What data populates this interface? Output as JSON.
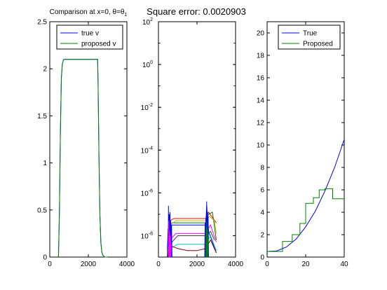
{
  "figure": {
    "suptitle": "Square error: 0.0020903"
  },
  "chart_data": [
    {
      "type": "line",
      "title_prefix": "Comparison at x=0, θ=θ",
      "title_sub": "1",
      "xlim": [
        0,
        4000
      ],
      "ylim": [
        0,
        2.5
      ],
      "xticks": [
        "0",
        "2000",
        "4000"
      ],
      "xtick_values": [
        0,
        2000,
        4000
      ],
      "yticks": [
        "0",
        "0.5",
        "1",
        "1.5",
        "2",
        "2.5"
      ],
      "ytick_values": [
        0,
        0.5,
        1,
        1.5,
        2,
        2.5
      ],
      "legend": "top-right",
      "series": [
        {
          "name": "true v",
          "color": "#0000ff",
          "x": [
            450,
            500,
            550,
            600,
            650,
            700,
            730,
            2480,
            2500,
            2550,
            2600,
            2650,
            2700,
            2750,
            2800,
            2850,
            2900,
            3000
          ],
          "y": [
            0,
            0.5,
            1.3,
            1.9,
            2.05,
            2.09,
            2.1,
            2.1,
            1.9,
            1.1,
            0.45,
            0.15,
            0.05,
            0.02,
            0.01,
            0,
            0,
            0
          ]
        },
        {
          "name": "proposed v",
          "color": "#008000",
          "x": [
            450,
            500,
            550,
            600,
            650,
            700,
            730,
            2480,
            2500,
            2550,
            2600,
            2650,
            2700,
            2750,
            2800,
            2850,
            2900,
            3000
          ],
          "y": [
            0,
            0.5,
            1.3,
            1.9,
            2.05,
            2.09,
            2.1,
            2.1,
            1.9,
            1.1,
            0.45,
            0.15,
            0.05,
            0.02,
            0.01,
            0,
            0,
            0
          ]
        }
      ]
    },
    {
      "type": "line",
      "scale": "log",
      "xlim": [
        0,
        4000
      ],
      "ylim_exp": [
        -9,
        2
      ],
      "xticks": [
        "0",
        "2000",
        "4000"
      ],
      "xtick_values": [
        0,
        2000,
        4000
      ],
      "yticks": [
        {
          "base": "10",
          "exp": "2",
          "value": 2
        },
        {
          "base": "10",
          "exp": "0",
          "value": 0
        },
        {
          "base": "10",
          "exp": "-2",
          "value": -2
        },
        {
          "base": "10",
          "exp": "-4",
          "value": -4
        },
        {
          "base": "10",
          "exp": "-6",
          "value": -6
        },
        {
          "base": "10",
          "exp": "-8",
          "value": -8
        }
      ],
      "series": [
        {
          "color": "#ff0000",
          "x": [
            450,
            600,
            800,
            1200,
            2000,
            2450,
            2600,
            3000
          ],
          "y": [
            -9,
            -7.3,
            -7.2,
            -7.2,
            -7.2,
            -7.2,
            -6.9,
            -7.4
          ]
        },
        {
          "color": "#008000",
          "x": [
            450,
            550,
            700,
            1200,
            2000,
            2450,
            2600,
            2800,
            3000
          ],
          "y": [
            -9,
            -7.6,
            -7.4,
            -7.4,
            -7.4,
            -7.4,
            -7.0,
            -6.9,
            -8.2
          ]
        },
        {
          "color": "#0000ff",
          "x": [
            450,
            500,
            600,
            1200,
            2000,
            2450,
            2500,
            2600,
            3000
          ],
          "y": [
            -9,
            -7.7,
            -7.5,
            -7.5,
            -7.5,
            -7.5,
            -6.6,
            -7.8,
            -8.8
          ]
        },
        {
          "color": "#ff00ff",
          "x": [
            450,
            600,
            900,
            1500,
            2000,
            2450,
            2700,
            3000
          ],
          "y": [
            -9,
            -8.2,
            -7.9,
            -7.9,
            -7.9,
            -7.9,
            -7.5,
            -8.3
          ]
        },
        {
          "color": "#00bfbf",
          "x": [
            450,
            600,
            1000,
            1500,
            2000,
            2450,
            2700,
            3000
          ],
          "y": [
            -9,
            -8.6,
            -8.4,
            -8.4,
            -8.4,
            -8.4,
            -8.0,
            -8.7
          ]
        },
        {
          "color": "#bfbf00",
          "x": [
            450,
            600,
            900,
            1500,
            2000,
            2450,
            2650,
            2900,
            3000
          ],
          "y": [
            -9,
            -7.5,
            -7.3,
            -7.3,
            -7.3,
            -7.3,
            -7.1,
            -7.3,
            -7.9
          ]
        },
        {
          "color": "#800000",
          "x": [
            450,
            700,
            1000,
            1500,
            2000,
            2450,
            2700,
            3000
          ],
          "y": [
            -9,
            -8.5,
            -8.6,
            -8.7,
            -8.7,
            -8.6,
            -8.2,
            -8.8
          ]
        },
        {
          "color": "#404040",
          "x": [
            450,
            600,
            1000,
            1500,
            2000,
            2450,
            2700,
            2900
          ],
          "y": [
            -9,
            -8.4,
            -8.0,
            -8.0,
            -8.0,
            -8.0,
            -7.8,
            -8.2
          ]
        },
        {
          "color": "#0000ff",
          "x": [
            500,
            520,
            540,
            560,
            580,
            600,
            620,
            640,
            660,
            680,
            700
          ],
          "y": [
            -9,
            -6.6,
            -9,
            -7.0,
            -9,
            -6.9,
            -9,
            -7.3,
            -9,
            -7.5,
            -9
          ]
        },
        {
          "color": "#0000ff",
          "x": [
            2400,
            2420,
            2440,
            2460,
            2480,
            2500,
            2520,
            2540,
            2560,
            2580,
            2600
          ],
          "y": [
            -9,
            -7.4,
            -9,
            -7.2,
            -9,
            -6.4,
            -9,
            -6.9,
            -9,
            -7.1,
            -9
          ]
        },
        {
          "color": "#ff00ff",
          "x": [
            520,
            540,
            560,
            580,
            600,
            620,
            640,
            660
          ],
          "y": [
            -9,
            -7.3,
            -9,
            -7.8,
            -9,
            -8.0,
            -9,
            -8.4
          ]
        },
        {
          "color": "#008000",
          "x": [
            2450,
            2470,
            2490,
            2510,
            2530,
            2550,
            2570,
            2590
          ],
          "y": [
            -9,
            -7.6,
            -9,
            -7.3,
            -9,
            -7.7,
            -9,
            -8.1
          ]
        }
      ]
    },
    {
      "type": "line",
      "xlim": [
        0,
        40
      ],
      "ylim": [
        0,
        21
      ],
      "xticks": [
        "0",
        "20",
        "40"
      ],
      "xtick_values": [
        0,
        20,
        40
      ],
      "yticks": [
        "0",
        "2",
        "4",
        "6",
        "8",
        "10",
        "12",
        "14",
        "16",
        "18",
        "20"
      ],
      "ytick_values": [
        0,
        2,
        4,
        6,
        8,
        10,
        12,
        14,
        16,
        18,
        20
      ],
      "legend": "top-right",
      "series": [
        {
          "name": "True",
          "color": "#0000ff",
          "x": [
            0,
            5,
            10,
            15,
            20,
            25,
            30,
            35,
            40
          ],
          "y": [
            0.5,
            0.55,
            0.9,
            1.6,
            2.7,
            4.1,
            5.9,
            8.0,
            10.5
          ]
        },
        {
          "name": "Proposed",
          "color": "#008000",
          "x": [
            0,
            5,
            8,
            8,
            13,
            13,
            17,
            17,
            20,
            20,
            24,
            24,
            27,
            27,
            30,
            30,
            34,
            34,
            37,
            37,
            40
          ],
          "y": [
            0.5,
            0.5,
            0.5,
            1.4,
            1.4,
            2.0,
            2.0,
            3.0,
            3.0,
            4.8,
            4.8,
            5.3,
            5.3,
            6.0,
            6.0,
            6.1,
            6.1,
            5.2,
            5.2,
            5.2,
            5.2
          ]
        }
      ]
    }
  ]
}
